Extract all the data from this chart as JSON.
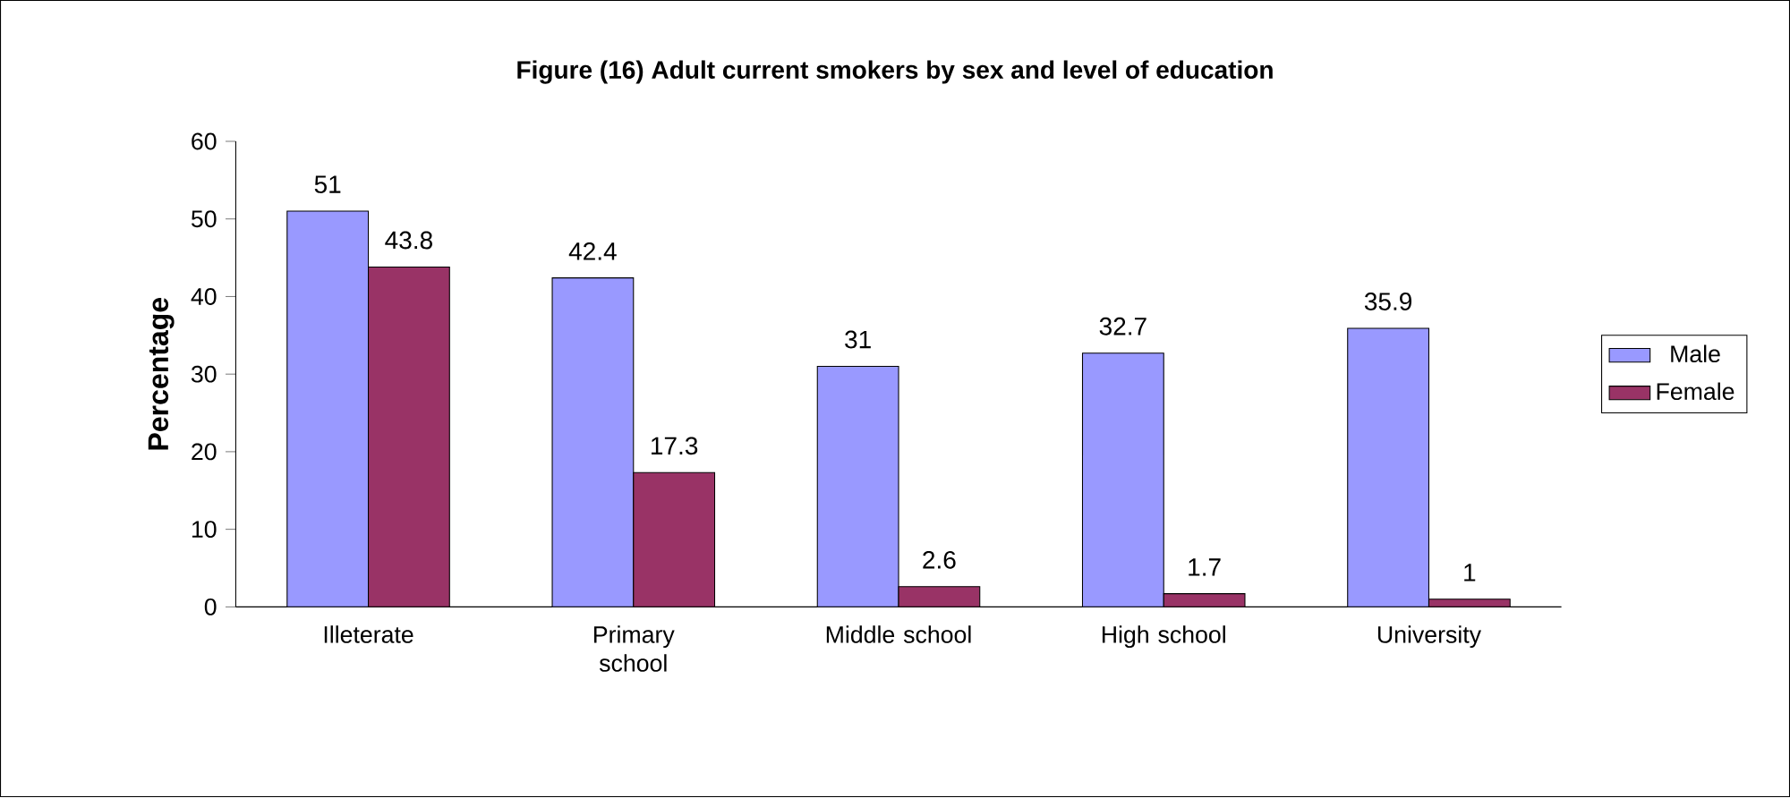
{
  "chart_data": {
    "type": "bar",
    "title": "Figure (16) Adult current smokers by sex and level of education",
    "ylabel": "Percentage",
    "categories": [
      "Illeterate",
      "Primary school",
      "Middle school",
      "High school",
      "University"
    ],
    "series": [
      {
        "name": "Male",
        "color": "#9999ff",
        "values": [
          51,
          42.4,
          31,
          32.7,
          35.9
        ]
      },
      {
        "name": "Female",
        "color": "#993366",
        "values": [
          43.8,
          17.3,
          2.6,
          1.7,
          1
        ]
      }
    ],
    "ylim": [
      0,
      60
    ],
    "yticks": [
      0,
      10,
      20,
      30,
      40,
      50,
      60
    ],
    "data_labels": true,
    "legend": "right"
  }
}
